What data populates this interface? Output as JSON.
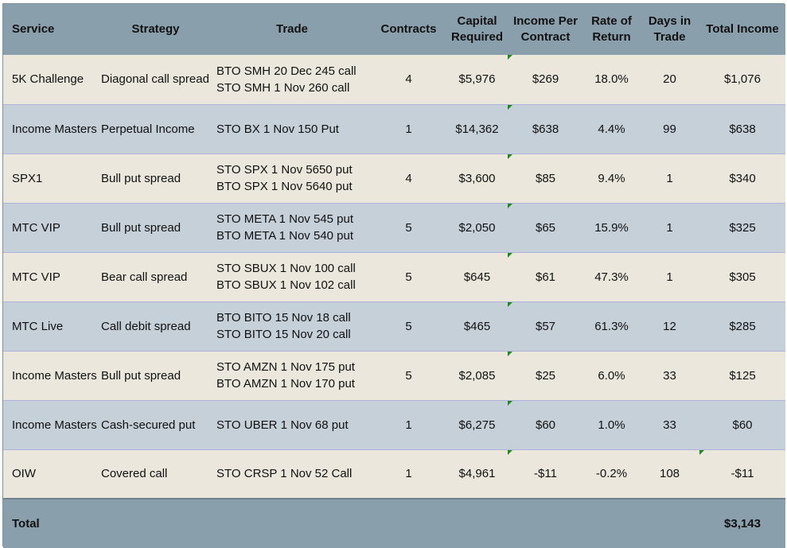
{
  "headers": {
    "service": "Service",
    "strategy": "Strategy",
    "trade": "Trade",
    "contracts": "Contracts",
    "capital_l1": "Capital",
    "capital_l2": "Required",
    "income_l1": "Income Per",
    "income_l2": "Contract",
    "ror_l1": "Rate of",
    "ror_l2": "Return",
    "days_l1": "Days in",
    "days_l2": "Trade",
    "total": "Total Income"
  },
  "rows": [
    {
      "service": "5K Challenge",
      "strategy": "Diagonal call spread",
      "trade1": "BTO SMH 20 Dec 245 call",
      "trade2": "STO SMH 1 Nov 260 call",
      "contracts": "4",
      "capital": "$5,976",
      "income": "$269",
      "ror": "18.0%",
      "days": "20",
      "total": "$1,076"
    },
    {
      "service": "Income Masters",
      "strategy": "Perpetual Income",
      "trade1": "STO BX 1 Nov 150 Put",
      "trade2": "",
      "contracts": "1",
      "capital": "$14,362",
      "income": "$638",
      "ror": "4.4%",
      "days": "99",
      "total": "$638"
    },
    {
      "service": "SPX1",
      "strategy": "Bull put spread",
      "trade1": "STO SPX 1 Nov 5650 put",
      "trade2": "BTO SPX 1 Nov 5640 put",
      "contracts": "4",
      "capital": "$3,600",
      "income": "$85",
      "ror": "9.4%",
      "days": "1",
      "total": "$340"
    },
    {
      "service": "MTC VIP",
      "strategy": "Bull put spread",
      "trade1": "STO META 1 Nov 545 put",
      "trade2": "BTO META 1 Nov 540 put",
      "contracts": "5",
      "capital": "$2,050",
      "income": "$65",
      "ror": "15.9%",
      "days": "1",
      "total": "$325"
    },
    {
      "service": "MTC VIP",
      "strategy": "Bear call spread",
      "trade1": "STO SBUX 1 Nov 100 call",
      "trade2": "BTO SBUX 1 Nov 102 call",
      "contracts": "5",
      "capital": "$645",
      "income": "$61",
      "ror": "47.3%",
      "days": "1",
      "total": "$305"
    },
    {
      "service": "MTC Live",
      "strategy": "Call debit spread",
      "trade1": "BTO BITO 15 Nov 18 call",
      "trade2": "STO BITO 15 Nov 20 call",
      "contracts": "5",
      "capital": "$465",
      "income": "$57",
      "ror": "61.3%",
      "days": "12",
      "total": "$285"
    },
    {
      "service": "Income Masters",
      "strategy": "Bull put spread",
      "trade1": "STO AMZN 1 Nov 175 put",
      "trade2": "BTO AMZN 1 Nov 170 put",
      "contracts": "5",
      "capital": "$2,085",
      "income": "$25",
      "ror": "6.0%",
      "days": "33",
      "total": "$125"
    },
    {
      "service": "Income Masters",
      "strategy": "Cash-secured put",
      "trade1": "STO UBER 1 Nov 68 put",
      "trade2": "",
      "contracts": "1",
      "capital": "$6,275",
      "income": "$60",
      "ror": "1.0%",
      "days": "33",
      "total": "$60"
    },
    {
      "service": "OIW",
      "strategy": "Covered call",
      "trade1": "STO CRSP 1 Nov 52 Call",
      "trade2": "",
      "contracts": "1",
      "capital": "$4,961",
      "income": "-$11",
      "ror": "-0.2%",
      "days": "108",
      "total": "-$11"
    }
  ],
  "footer": {
    "label": "Total",
    "value": "$3,143"
  },
  "colors": {
    "header_bg": "#8a9fac",
    "row_odd": "#ebe7dc",
    "row_even": "#c5d0d9",
    "comment_marker": "#1e8a1e"
  }
}
